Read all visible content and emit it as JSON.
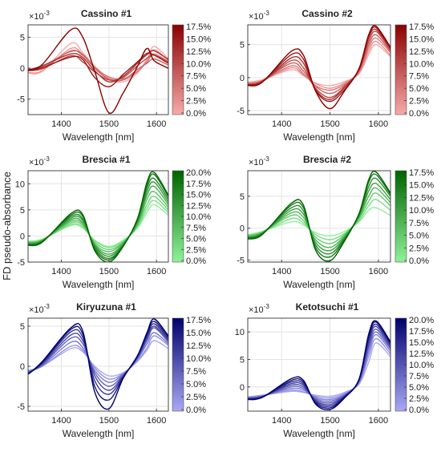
{
  "figure": {
    "ylabel": "FD pseudo-absorbance",
    "xlabel": "Wavelength [nm]",
    "exponent_base": "×10",
    "exponent_power": "-3"
  },
  "chart_data": [
    {
      "type": "line",
      "title": "Cassino #1",
      "xlabel": "Wavelength [nm]",
      "ylabel": "FD pseudo-absorbance",
      "xlim": [
        1330,
        1625
      ],
      "ylim": [
        -7.5,
        7.0
      ],
      "xticks": [
        1400,
        1500,
        1600
      ],
      "yticks": [
        -5,
        0,
        5
      ],
      "colorbar": {
        "labels": [
          "17.5%",
          "15.0%",
          "12.5%",
          "10.0%",
          "7.5%",
          "5.0%",
          "2.5%",
          "0.0%"
        ],
        "color_low": "#f7aaaa",
        "color_high": "#8b0000"
      },
      "series": [
        {
          "level": 0.0,
          "values": [
            -0.8,
            -0.5,
            4.0,
            2.5,
            0.3,
            -1.8,
            -2.2,
            -0.8,
            1.5,
            3.5,
            1.5
          ]
        },
        {
          "level": 2.5,
          "values": [
            -0.7,
            -0.4,
            3.2,
            2.2,
            0.3,
            -1.6,
            -1.9,
            -0.6,
            1.3,
            3.0,
            1.2
          ]
        },
        {
          "level": 5.0,
          "values": [
            -0.3,
            0.0,
            2.8,
            2.0,
            0.1,
            -1.4,
            -1.7,
            -0.5,
            1.0,
            2.3,
            1.0
          ]
        },
        {
          "level": 7.5,
          "values": [
            -0.2,
            0.3,
            2.7,
            2.2,
            0.0,
            -1.8,
            -1.9,
            -0.2,
            0.8,
            1.5,
            0.5
          ]
        },
        {
          "level": 10.0,
          "values": [
            -0.4,
            -0.1,
            2.0,
            1.0,
            -0.6,
            -1.9,
            -1.5,
            0.4,
            1.6,
            2.1,
            1.0
          ]
        },
        {
          "level": 12.5,
          "values": [
            -0.3,
            0.4,
            2.3,
            1.7,
            -0.4,
            -2.2,
            -1.3,
            0.8,
            2.2,
            2.8,
            1.4
          ]
        },
        {
          "level": 15.0,
          "values": [
            -0.4,
            0.1,
            1.8,
            1.4,
            -1.5,
            -3.0,
            -1.0,
            1.0,
            2.4,
            2.1,
            0.8
          ]
        },
        {
          "level": 17.5,
          "values": [
            -0.3,
            0.6,
            6.2,
            5.0,
            -0.5,
            -7.2,
            -4.0,
            0.3,
            3.2,
            1.2,
            0.0
          ]
        }
      ]
    },
    {
      "type": "line",
      "title": "Cassino #2",
      "xlabel": "Wavelength [nm]",
      "ylabel": "",
      "xlim": [
        1330,
        1625
      ],
      "ylim": [
        -5.6,
        8.0
      ],
      "xticks": [
        1400,
        1500,
        1600
      ],
      "yticks": [
        -5,
        0,
        5
      ],
      "colorbar": {
        "labels": [
          "17.5%",
          "15.0%",
          "12.5%",
          "10.0%",
          "7.5%",
          "5.0%",
          "2.5%",
          "0.0%"
        ],
        "color_low": "#f7aaaa",
        "color_high": "#8b0000"
      },
      "series": [
        {
          "level": 0.0,
          "values": [
            -0.7,
            -0.3,
            1.2,
            0.3,
            -0.8,
            -1.2,
            -0.6,
            0.6,
            3.5,
            5.0,
            3.2
          ]
        },
        {
          "level": 2.5,
          "values": [
            -0.8,
            -0.4,
            1.5,
            0.4,
            -0.9,
            -1.6,
            -0.8,
            0.7,
            4.0,
            5.5,
            3.4
          ]
        },
        {
          "level": 5.0,
          "values": [
            -0.9,
            -0.5,
            1.8,
            0.6,
            -1.2,
            -1.9,
            -1.0,
            0.9,
            4.5,
            6.0,
            3.8
          ]
        },
        {
          "level": 7.5,
          "values": [
            -1.0,
            -0.5,
            2.2,
            1.0,
            -1.3,
            -2.4,
            -1.2,
            1.1,
            5.0,
            6.5,
            4.0
          ]
        },
        {
          "level": 10.0,
          "values": [
            -1.0,
            -0.6,
            2.6,
            1.5,
            -1.6,
            -3.0,
            -1.4,
            1.2,
            5.5,
            7.0,
            4.2
          ]
        },
        {
          "level": 12.5,
          "values": [
            -1.1,
            -0.6,
            3.0,
            2.2,
            -1.8,
            -3.3,
            -1.5,
            1.2,
            6.0,
            7.3,
            4.4
          ]
        },
        {
          "level": 15.0,
          "values": [
            -1.1,
            -0.6,
            3.5,
            2.8,
            -1.9,
            -3.6,
            -1.8,
            1.3,
            6.3,
            7.6,
            4.5
          ]
        },
        {
          "level": 17.5,
          "values": [
            -1.2,
            -0.7,
            4.0,
            3.4,
            -2.0,
            -4.7,
            -2.0,
            1.4,
            6.5,
            7.8,
            4.6
          ]
        }
      ]
    },
    {
      "type": "line",
      "title": "Brescia #1",
      "xlabel": "Wavelength [nm]",
      "ylabel": "FD pseudo-absorbance",
      "xlim": [
        1330,
        1625
      ],
      "ylim": [
        -5.0,
        12.5
      ],
      "xticks": [
        1400,
        1500,
        1600
      ],
      "yticks": [
        -5,
        0,
        5,
        10
      ],
      "colorbar": {
        "labels": [
          "20.0%",
          "17.5%",
          "15.0%",
          "12.5%",
          "10.0%",
          "7.5%",
          "5.0%",
          "2.5%",
          "0.0%"
        ],
        "color_low": "#8ff29a",
        "color_high": "#006400"
      },
      "series": [
        {
          "level": 0.0,
          "values": [
            -1.0,
            -0.6,
            2.0,
            1.5,
            -0.8,
            -2.0,
            -0.8,
            1.5,
            4.5,
            6.0,
            4.0
          ]
        },
        {
          "level": 2.5,
          "values": [
            -1.1,
            -0.7,
            2.2,
            1.7,
            -0.9,
            -2.2,
            -1.0,
            1.7,
            5.2,
            6.8,
            4.5
          ]
        },
        {
          "level": 5.0,
          "values": [
            -1.2,
            -0.8,
            2.5,
            2.0,
            -1.2,
            -2.6,
            -1.2,
            2.0,
            6.0,
            7.6,
            5.0
          ]
        },
        {
          "level": 7.5,
          "values": [
            -1.3,
            -0.8,
            2.8,
            2.3,
            -1.5,
            -3.0,
            -1.3,
            2.2,
            7.0,
            8.5,
            5.5
          ]
        },
        {
          "level": 10.0,
          "values": [
            -1.4,
            -0.9,
            3.1,
            2.6,
            -1.7,
            -3.5,
            -1.5,
            2.5,
            7.8,
            9.5,
            6.0
          ]
        },
        {
          "level": 12.5,
          "values": [
            -1.5,
            -0.9,
            3.4,
            3.0,
            -1.9,
            -3.9,
            -1.6,
            2.7,
            8.5,
            10.3,
            6.5
          ]
        },
        {
          "level": 15.0,
          "values": [
            -1.6,
            -1.0,
            3.7,
            3.3,
            -2.2,
            -4.3,
            -1.8,
            3.0,
            9.2,
            11.0,
            7.0
          ]
        },
        {
          "level": 17.5,
          "values": [
            -1.7,
            -1.1,
            4.0,
            3.8,
            -2.5,
            -4.6,
            -1.9,
            3.2,
            9.8,
            11.8,
            7.5
          ]
        },
        {
          "level": 20.0,
          "values": [
            -1.8,
            -1.2,
            4.3,
            4.1,
            -2.8,
            -5.0,
            -2.0,
            3.3,
            10.3,
            12.2,
            7.8
          ]
        }
      ]
    },
    {
      "type": "line",
      "title": "Brescia #2",
      "xlabel": "Wavelength [nm]",
      "ylabel": "",
      "xlim": [
        1330,
        1625
      ],
      "ylim": [
        -5.3,
        9.0
      ],
      "xticks": [
        1400,
        1500,
        1600
      ],
      "yticks": [
        -5,
        0,
        5
      ],
      "colorbar": {
        "labels": [
          "17.5%",
          "15.0%",
          "12.5%",
          "10.0%",
          "7.5%",
          "5.0%",
          "2.5%",
          "0.0%"
        ],
        "color_low": "#8ff29a",
        "color_high": "#006400"
      },
      "series": [
        {
          "level": 0.0,
          "values": [
            -1.0,
            -0.5,
            1.0,
            0.5,
            -0.7,
            -1.2,
            -0.5,
            1.0,
            2.8,
            3.2,
            2.0
          ]
        },
        {
          "level": 2.5,
          "values": [
            -1.1,
            -0.6,
            1.5,
            0.8,
            -1.0,
            -1.8,
            -0.8,
            1.2,
            3.5,
            4.5,
            2.8
          ]
        },
        {
          "level": 5.0,
          "values": [
            -1.2,
            -0.6,
            2.0,
            1.2,
            -1.4,
            -2.4,
            -1.0,
            1.5,
            4.2,
            5.5,
            3.5
          ]
        },
        {
          "level": 7.5,
          "values": [
            -1.3,
            -0.7,
            2.4,
            1.7,
            -1.8,
            -3.0,
            -1.2,
            1.7,
            5.0,
            6.3,
            4.0
          ]
        },
        {
          "level": 10.0,
          "values": [
            -1.4,
            -0.8,
            2.8,
            2.2,
            -2.2,
            -3.5,
            -1.4,
            1.9,
            5.8,
            7.0,
            4.5
          ]
        },
        {
          "level": 12.5,
          "values": [
            -1.5,
            -0.8,
            3.2,
            2.7,
            -2.6,
            -4.0,
            -1.6,
            2.0,
            6.5,
            7.8,
            5.0
          ]
        },
        {
          "level": 15.0,
          "values": [
            -1.6,
            -0.9,
            3.6,
            3.2,
            -3.0,
            -4.5,
            -1.8,
            2.2,
            7.2,
            8.4,
            5.3
          ]
        },
        {
          "level": 17.5,
          "values": [
            -1.7,
            -1.0,
            3.9,
            3.6,
            -3.4,
            -5.1,
            -2.0,
            2.3,
            7.6,
            8.8,
            5.5
          ]
        }
      ]
    },
    {
      "type": "line",
      "title": "Kiryuzuna #1",
      "xlabel": "Wavelength [nm]",
      "ylabel": "FD pseudo-absorbance",
      "xlim": [
        1330,
        1625
      ],
      "ylim": [
        -5.6,
        6.0
      ],
      "xticks": [
        1400,
        1500,
        1600
      ],
      "yticks": [
        -5,
        0,
        5
      ],
      "colorbar": {
        "labels": [
          "17.5%",
          "15.0%",
          "12.5%",
          "10.0%",
          "7.5%",
          "5.0%",
          "2.5%",
          "0.0%"
        ],
        "color_low": "#a9a9f5",
        "color_high": "#00006e"
      },
      "series": [
        {
          "level": 0.0,
          "values": [
            -0.5,
            0.0,
            2.2,
            1.8,
            0.0,
            -1.2,
            -0.8,
            0.6,
            2.0,
            3.2,
            2.2
          ]
        },
        {
          "level": 2.5,
          "values": [
            -0.6,
            0.0,
            2.5,
            2.0,
            -0.2,
            -1.6,
            -0.9,
            0.7,
            2.3,
            3.8,
            2.6
          ]
        },
        {
          "level": 5.0,
          "values": [
            -0.7,
            0.1,
            3.0,
            2.3,
            -0.5,
            -2.0,
            -1.0,
            0.9,
            2.8,
            4.2,
            2.8
          ]
        },
        {
          "level": 7.5,
          "values": [
            -0.8,
            0.2,
            3.5,
            2.8,
            -0.8,
            -2.5,
            -1.1,
            1.0,
            3.2,
            4.8,
            3.0
          ]
        },
        {
          "level": 10.0,
          "values": [
            -0.8,
            0.3,
            3.9,
            3.2,
            -1.2,
            -3.0,
            -1.2,
            1.1,
            3.5,
            5.0,
            3.2
          ]
        },
        {
          "level": 12.5,
          "values": [
            -0.9,
            0.4,
            4.3,
            3.6,
            -1.8,
            -3.5,
            -1.3,
            1.2,
            3.8,
            5.3,
            3.4
          ]
        },
        {
          "level": 15.0,
          "values": [
            -1.0,
            0.5,
            4.6,
            4.0,
            -2.5,
            -4.2,
            -1.4,
            1.3,
            4.0,
            5.6,
            3.6
          ]
        },
        {
          "level": 17.5,
          "values": [
            -1.0,
            0.6,
            4.8,
            4.4,
            -3.2,
            -5.3,
            -1.5,
            1.3,
            4.2,
            5.9,
            3.8
          ]
        }
      ]
    },
    {
      "type": "line",
      "title": "Ketotsuchi #1",
      "xlabel": "Wavelength [nm]",
      "ylabel": "",
      "xlim": [
        1330,
        1625
      ],
      "ylim": [
        -4.4,
        12.5
      ],
      "xticks": [
        1400,
        1500,
        1600
      ],
      "yticks": [
        0,
        5,
        10
      ],
      "colorbar": {
        "labels": [
          "20.0%",
          "17.5%",
          "15.0%",
          "12.5%",
          "10.0%",
          "7.5%",
          "5.0%",
          "2.5%",
          "0.0%"
        ],
        "color_low": "#a9a9f5",
        "color_high": "#00006e"
      },
      "series": [
        {
          "level": 0.0,
          "values": [
            -1.8,
            -1.5,
            -0.8,
            -1.0,
            -1.5,
            -1.7,
            -1.0,
            0.5,
            4.5,
            8.0,
            5.5
          ]
        },
        {
          "level": 2.5,
          "values": [
            -1.9,
            -1.6,
            -0.6,
            -0.9,
            -1.7,
            -2.0,
            -1.2,
            0.7,
            5.5,
            8.8,
            6.0
          ]
        },
        {
          "level": 5.0,
          "values": [
            -2.0,
            -1.6,
            -0.3,
            -0.6,
            -1.9,
            -2.3,
            -1.4,
            0.9,
            6.3,
            9.5,
            6.5
          ]
        },
        {
          "level": 7.5,
          "values": [
            -2.0,
            -1.7,
            0.0,
            -0.3,
            -2.1,
            -2.6,
            -1.5,
            1.0,
            7.0,
            10.0,
            6.9
          ]
        },
        {
          "level": 10.0,
          "values": [
            -2.1,
            -1.7,
            0.3,
            0.0,
            -2.3,
            -2.9,
            -1.6,
            1.1,
            7.6,
            10.5,
            7.2
          ]
        },
        {
          "level": 12.5,
          "values": [
            -2.1,
            -1.8,
            0.6,
            0.3,
            -2.5,
            -3.2,
            -1.7,
            1.2,
            8.2,
            11.0,
            7.5
          ]
        },
        {
          "level": 15.0,
          "values": [
            -2.2,
            -1.8,
            0.9,
            0.6,
            -2.7,
            -3.5,
            -1.8,
            1.3,
            8.7,
            11.4,
            7.8
          ]
        },
        {
          "level": 17.5,
          "values": [
            -2.2,
            -1.9,
            1.2,
            0.9,
            -2.9,
            -3.8,
            -1.9,
            1.4,
            9.2,
            11.8,
            8.0
          ]
        },
        {
          "level": 20.0,
          "values": [
            -2.3,
            -1.9,
            1.5,
            1.2,
            -3.1,
            -4.1,
            -2.0,
            1.4,
            9.6,
            12.0,
            8.2
          ]
        }
      ]
    }
  ]
}
